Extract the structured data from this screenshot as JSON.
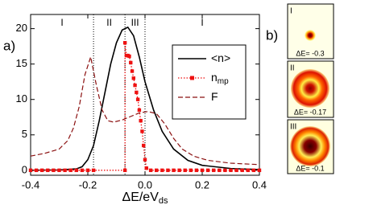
{
  "chart_data": {
    "type": "line",
    "panel_labels": [
      "a)",
      "b)"
    ],
    "x_label": "ΔE/eV",
    "x_label_sub": "ds",
    "xlim": [
      -0.4,
      0.4
    ],
    "xticks": [
      -0.4,
      -0.2,
      {
        "value": 0,
        "label": "0.0"
      },
      0.2,
      0.4
    ],
    "ylim": [
      -0.7,
      22
    ],
    "yticks": [
      0,
      5,
      10,
      15,
      20
    ],
    "region_labels": [
      "I",
      "II",
      "III",
      "I"
    ],
    "vlines": [
      -0.18,
      -0.07,
      0
    ],
    "series": [
      {
        "name": "<n>",
        "color": "#000000",
        "style": "solid",
        "x": [
          -0.4,
          -0.3,
          -0.24,
          -0.22,
          -0.2,
          -0.18,
          -0.16,
          -0.14,
          -0.12,
          -0.1,
          -0.08,
          -0.06,
          -0.04,
          -0.02,
          0,
          0.03,
          0.06,
          0.1,
          0.15,
          0.2,
          0.3,
          0.4
        ],
        "values": [
          0,
          0.05,
          0.2,
          0.5,
          1.5,
          3.5,
          7,
          11,
          15,
          18,
          19.8,
          20.2,
          19,
          16,
          12.5,
          8.5,
          5.5,
          3,
          1.4,
          0.7,
          0.25,
          0.1
        ]
      },
      {
        "name": "n",
        "name_sub": "mp",
        "color": "#ee1111",
        "style": "dotted-square",
        "x": [
          -0.4,
          -0.38,
          -0.36,
          -0.34,
          -0.32,
          -0.3,
          -0.28,
          -0.26,
          -0.24,
          -0.22,
          -0.2,
          -0.18,
          -0.07,
          -0.07,
          -0.065,
          -0.06,
          -0.055,
          -0.05,
          -0.045,
          -0.04,
          -0.035,
          -0.03,
          -0.025,
          -0.02,
          -0.015,
          -0.01,
          -0.005,
          0,
          0.005,
          0.02,
          0.04,
          0.06,
          0.08,
          0.1,
          0.12,
          0.14,
          0.16,
          0.18,
          0.2,
          0.22,
          0.24,
          0.26,
          0.28,
          0.3,
          0.32,
          0.34,
          0.36,
          0.38,
          0.4
        ],
        "values": [
          0,
          0,
          0,
          0,
          0,
          0,
          0,
          0,
          0,
          0,
          0,
          0,
          0,
          18,
          16.2,
          16.2,
          16.1,
          15.2,
          14,
          13,
          12,
          11,
          10,
          8.5,
          7,
          5.5,
          3.5,
          1.5,
          0.3,
          0,
          0,
          0,
          0,
          0,
          0,
          0,
          0,
          0,
          0,
          0,
          0,
          0,
          0,
          0,
          0,
          0,
          0,
          0,
          0
        ]
      },
      {
        "name": "F",
        "color": "#8b1010",
        "style": "dashed",
        "x": [
          -0.4,
          -0.35,
          -0.3,
          -0.27,
          -0.25,
          -0.23,
          -0.21,
          -0.19,
          -0.17,
          -0.15,
          -0.13,
          -0.11,
          -0.08,
          -0.05,
          -0.02,
          0.01,
          0.04,
          0.07,
          0.1,
          0.13,
          0.17,
          0.22,
          0.3,
          0.4
        ],
        "values": [
          2,
          2.4,
          3,
          4.2,
          6,
          9,
          13.5,
          16,
          12,
          8.5,
          7,
          6.8,
          7.1,
          7.6,
          8.1,
          8.3,
          8,
          6.5,
          4.5,
          3,
          2,
          1.4,
          1,
          0.8
        ]
      }
    ],
    "insets": [
      {
        "label": "I",
        "text": "ΔE= -0.3"
      },
      {
        "label": "II",
        "text": "ΔE= -0.17"
      },
      {
        "label": "III",
        "text": "ΔE= -0.1"
      }
    ]
  }
}
